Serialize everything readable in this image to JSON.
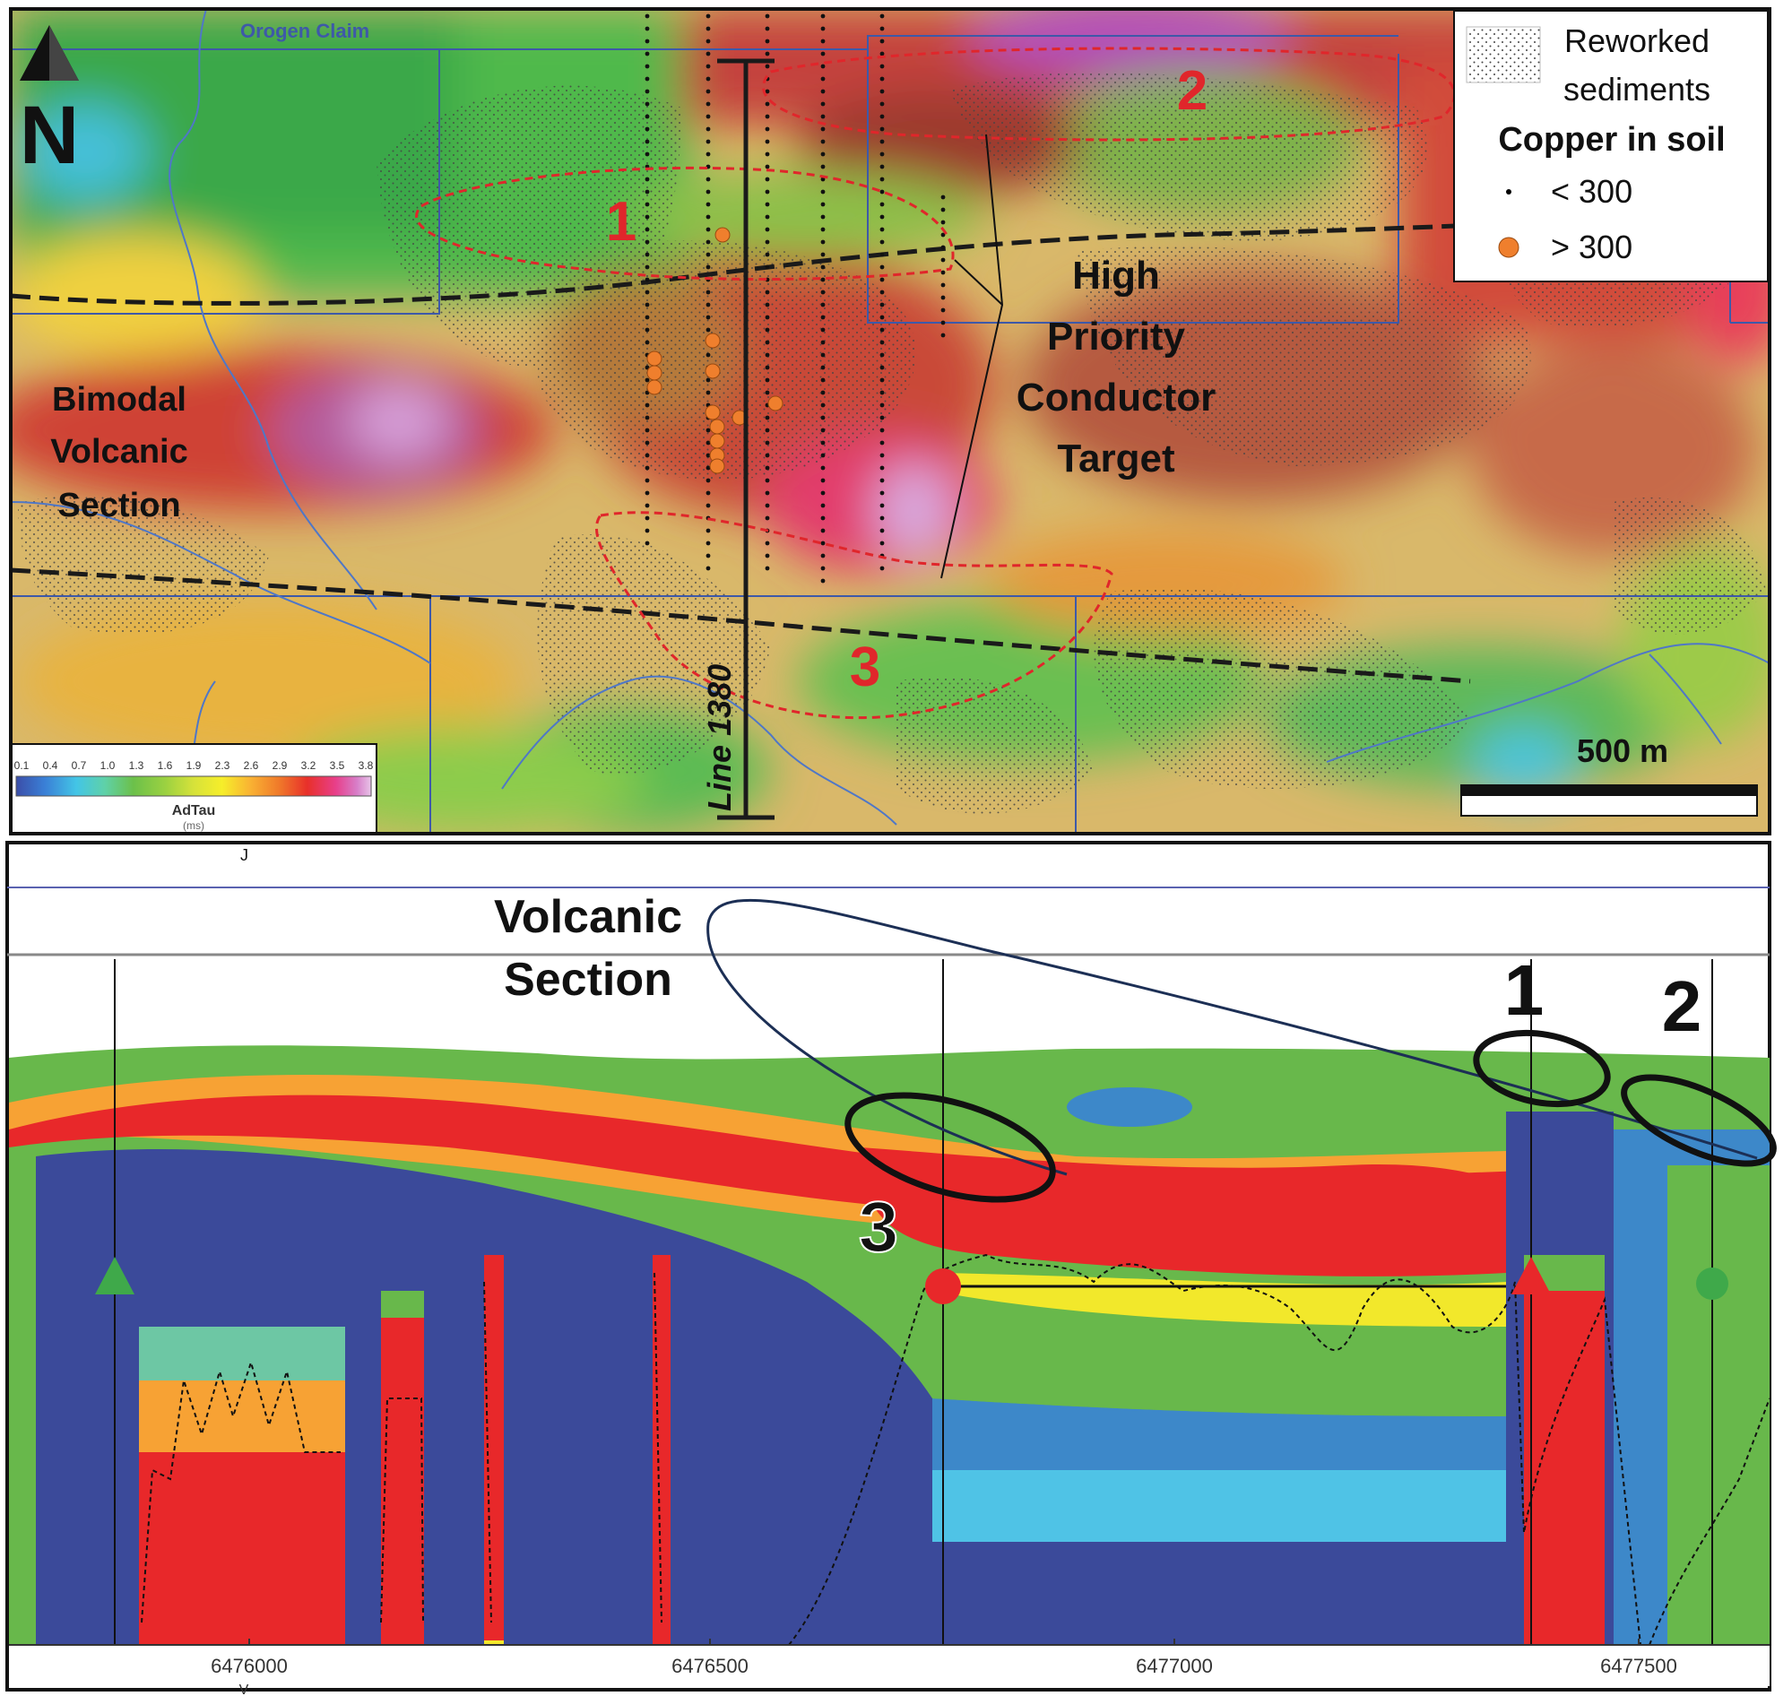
{
  "map": {
    "claim_label": "Orogen Claim",
    "north_letter": "N",
    "bimodal_label_lines": [
      "Bimodal",
      "Volcanic",
      "Section"
    ],
    "target_label_lines": [
      "High",
      "Priority",
      "Conductor",
      "Target"
    ],
    "line_label": "Line 1380",
    "zone_labels": [
      "1",
      "2",
      "3"
    ],
    "scale_label": "500 m"
  },
  "legend": {
    "reworked_lines": [
      "Reworked",
      "sediments"
    ],
    "copper_title": "Copper in soil",
    "low_label": "< 300",
    "high_label": "> 300",
    "low_color": "#000000",
    "high_color": "#ef7f2d"
  },
  "colorbar": {
    "ticks": [
      "0.1",
      "0.4",
      "0.7",
      "1.0",
      "1.3",
      "1.6",
      "1.9",
      "2.3",
      "2.6",
      "2.9",
      "3.2",
      "3.5",
      "3.8"
    ],
    "title": "AdTau",
    "unit": "(ms)",
    "colors": [
      "#3b4ea8",
      "#3a7fd6",
      "#43c5e6",
      "#5fd1a8",
      "#6cc04a",
      "#9bd141",
      "#d6e23a",
      "#f6ee2a",
      "#f9b233",
      "#f07a2a",
      "#e8302a",
      "#e83f8a",
      "#d77ec8",
      "#e8c4e8"
    ]
  },
  "section": {
    "volcanic_label_lines": [
      "Volcanic",
      "Section"
    ],
    "zone_labels": [
      "1",
      "2",
      "3"
    ],
    "x_ticks": [
      "6476000",
      "6476500",
      "6477000",
      "6477500"
    ],
    "tick_suffix": "V",
    "fragment_mark": "J",
    "colors": {
      "deep": "#3b4a9a",
      "blue": "#3d88c9",
      "cyan": "#4fc3e6",
      "teal": "#6dc7a4",
      "green": "#68b84b",
      "lime": "#a9d44a",
      "yellow": "#f2e82b",
      "orange": "#f7a234",
      "red": "#e8282a",
      "outline": "#1c2f55"
    }
  }
}
